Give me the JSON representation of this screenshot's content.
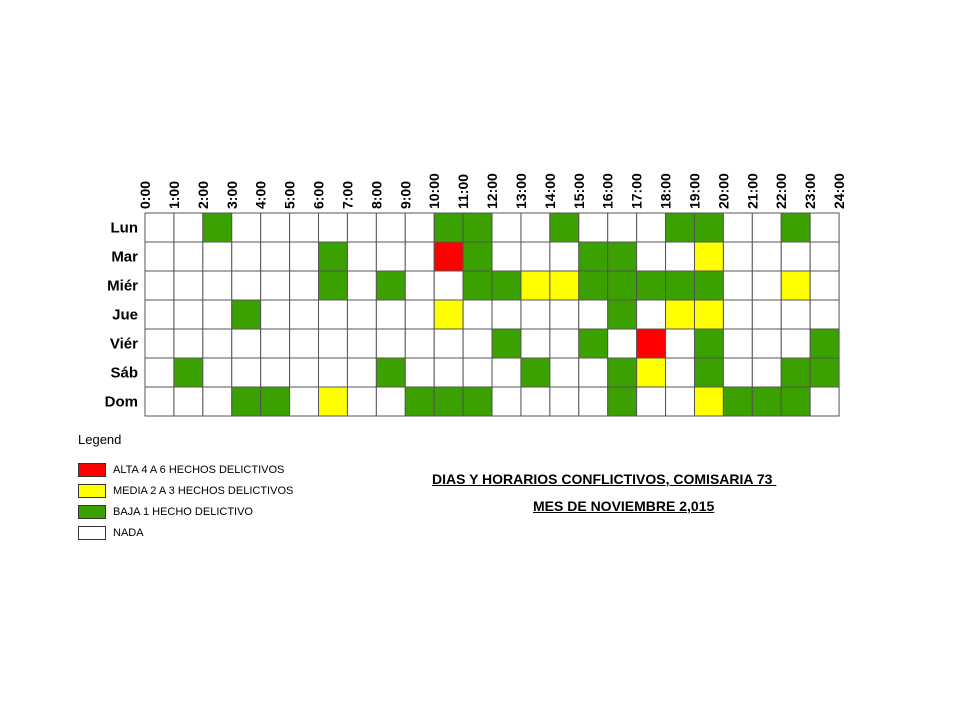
{
  "chart_data": {
    "type": "heatmap",
    "title": "DIAS Y HORARIOS CONFLICTIVOS, COMISARIA 73 ",
    "subtitle": "MES DE NOVIEMBRE 2,015",
    "hours": [
      "0:00",
      "1:00",
      "2:00",
      "3:00",
      "4:00",
      "5:00",
      "6:00",
      "7:00",
      "8:00",
      "9:00",
      "10:00",
      "11:00",
      "12:00",
      "13:00",
      "14:00",
      "15:00",
      "16:00",
      "17:00",
      "18:00",
      "19:00",
      "20:00",
      "21:00",
      "22:00",
      "23:00",
      "24:00"
    ],
    "days": [
      "Lun",
      "Mar",
      "Miér",
      "Jue",
      "Viér",
      "Sáb",
      "Dom"
    ],
    "level_colors": {
      "0": "#ffffff",
      "1": "#3aa100",
      "2": "#ffff00",
      "3": "#ff0000"
    },
    "values": [
      [
        0,
        0,
        1,
        0,
        0,
        0,
        0,
        0,
        0,
        0,
        1,
        1,
        0,
        0,
        1,
        0,
        0,
        0,
        1,
        1,
        0,
        0,
        1,
        0
      ],
      [
        0,
        0,
        0,
        0,
        0,
        0,
        1,
        0,
        0,
        0,
        3,
        1,
        0,
        0,
        0,
        1,
        1,
        0,
        0,
        2,
        0,
        0,
        0,
        0
      ],
      [
        0,
        0,
        0,
        0,
        0,
        0,
        1,
        0,
        1,
        0,
        0,
        1,
        1,
        2,
        2,
        1,
        1,
        1,
        1,
        1,
        0,
        0,
        2,
        0
      ],
      [
        0,
        0,
        0,
        1,
        0,
        0,
        0,
        0,
        0,
        0,
        2,
        0,
        0,
        0,
        0,
        0,
        1,
        0,
        2,
        2,
        0,
        0,
        0,
        0
      ],
      [
        0,
        0,
        0,
        0,
        0,
        0,
        0,
        0,
        0,
        0,
        0,
        0,
        1,
        0,
        0,
        1,
        0,
        3,
        0,
        1,
        0,
        0,
        0,
        1
      ],
      [
        0,
        1,
        0,
        0,
        0,
        0,
        0,
        0,
        1,
        0,
        0,
        0,
        0,
        1,
        0,
        0,
        1,
        2,
        0,
        1,
        0,
        0,
        1,
        1
      ],
      [
        0,
        0,
        0,
        1,
        1,
        0,
        2,
        0,
        0,
        1,
        1,
        1,
        0,
        0,
        0,
        0,
        1,
        0,
        0,
        2,
        1,
        1,
        1,
        0
      ]
    ]
  },
  "legend": {
    "title": "Legend",
    "items": [
      {
        "label": "ALTA 4 A 6 HECHOS DELICTIVOS",
        "color": "#ff0000"
      },
      {
        "label": "MEDIA 2 A 3 HECHOS DELICTIVOS",
        "color": "#ffff00"
      },
      {
        "label": "BAJA 1 HECHO DELICTIVO",
        "color": "#3aa100"
      },
      {
        "label": "NADA",
        "color": "#ffffff"
      }
    ]
  }
}
